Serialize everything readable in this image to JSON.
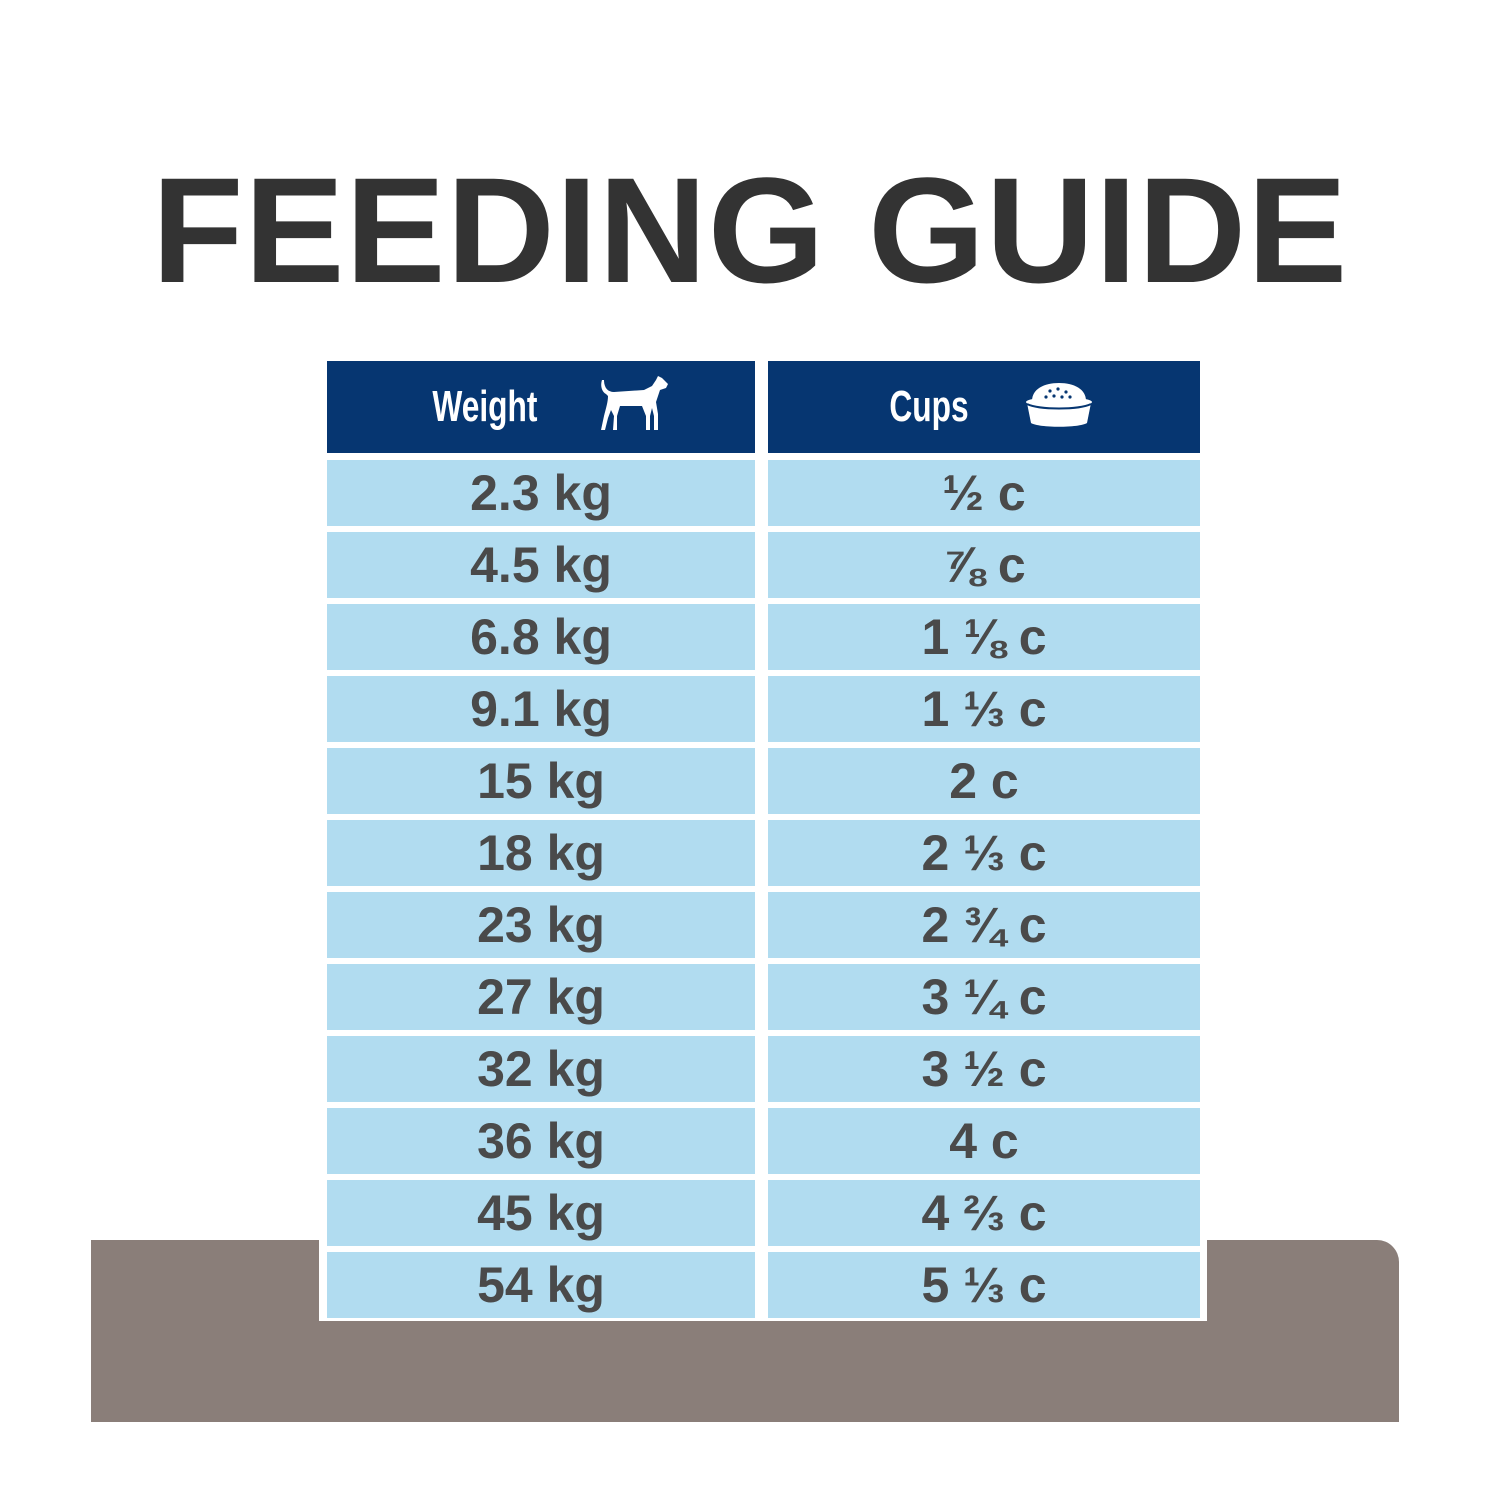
{
  "title": "FEEDING GUIDE",
  "colors": {
    "header": "#063671",
    "row": "#b1dcf0",
    "text": "#4a4a4a",
    "base": "#8a7e79"
  },
  "table": {
    "headers": [
      {
        "label": "Weight",
        "icon": "dog-icon"
      },
      {
        "label": "Cups",
        "icon": "food-bowl-icon"
      }
    ],
    "rows": [
      {
        "weight": "2.3 kg",
        "cups": "½ c"
      },
      {
        "weight": "4.5 kg",
        "cups": "⅞ c"
      },
      {
        "weight": "6.8 kg",
        "cups": "1 ⅛ c"
      },
      {
        "weight": "9.1 kg",
        "cups": "1 ⅓ c"
      },
      {
        "weight": "15 kg",
        "cups": "2 c"
      },
      {
        "weight": "18 kg",
        "cups": "2 ⅓ c"
      },
      {
        "weight": "23 kg",
        "cups": "2 ¾ c"
      },
      {
        "weight": "27 kg",
        "cups": "3 ¼ c"
      },
      {
        "weight": "32 kg",
        "cups": "3 ½ c"
      },
      {
        "weight": "36 kg",
        "cups": "4 c"
      },
      {
        "weight": "45 kg",
        "cups": "4 ⅔ c"
      },
      {
        "weight": "54 kg",
        "cups": "5 ⅓ c"
      }
    ]
  }
}
